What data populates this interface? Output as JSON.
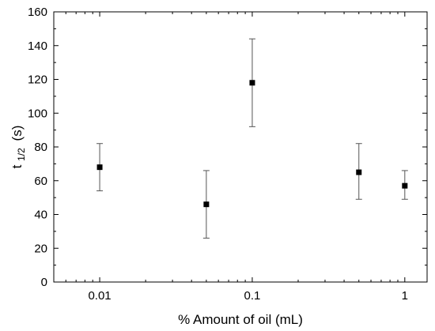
{
  "chart_data": {
    "type": "scatter",
    "title": "",
    "xlabel": "% Amount of oil (mL)",
    "ylabel": "t",
    "ylabel_sub": "1/2",
    "ylabel_unit": "(s)",
    "xscale": "log",
    "xlim": [
      0.005,
      1.4
    ],
    "ylim": [
      0,
      160
    ],
    "xticks": [
      0.01,
      0.1,
      1
    ],
    "xtick_labels": [
      "0.01",
      "0.1",
      "1"
    ],
    "yticks": [
      0,
      20,
      40,
      60,
      80,
      100,
      120,
      140,
      160
    ],
    "ytick_labels": [
      "0",
      "20",
      "40",
      "60",
      "80",
      "100",
      "120",
      "140",
      "160"
    ],
    "grid": false,
    "legend": "none",
    "marker": "square",
    "color": "#000000",
    "points": [
      {
        "x": 0.01,
        "y": 68,
        "err_low": 54,
        "err_high": 82
      },
      {
        "x": 0.05,
        "y": 46,
        "err_low": 26,
        "err_high": 66
      },
      {
        "x": 0.1,
        "y": 118,
        "err_low": 92,
        "err_high": 144
      },
      {
        "x": 0.5,
        "y": 65,
        "err_low": 49,
        "err_high": 82
      },
      {
        "x": 1,
        "y": 57,
        "err_low": 49,
        "err_high": 66
      }
    ]
  }
}
